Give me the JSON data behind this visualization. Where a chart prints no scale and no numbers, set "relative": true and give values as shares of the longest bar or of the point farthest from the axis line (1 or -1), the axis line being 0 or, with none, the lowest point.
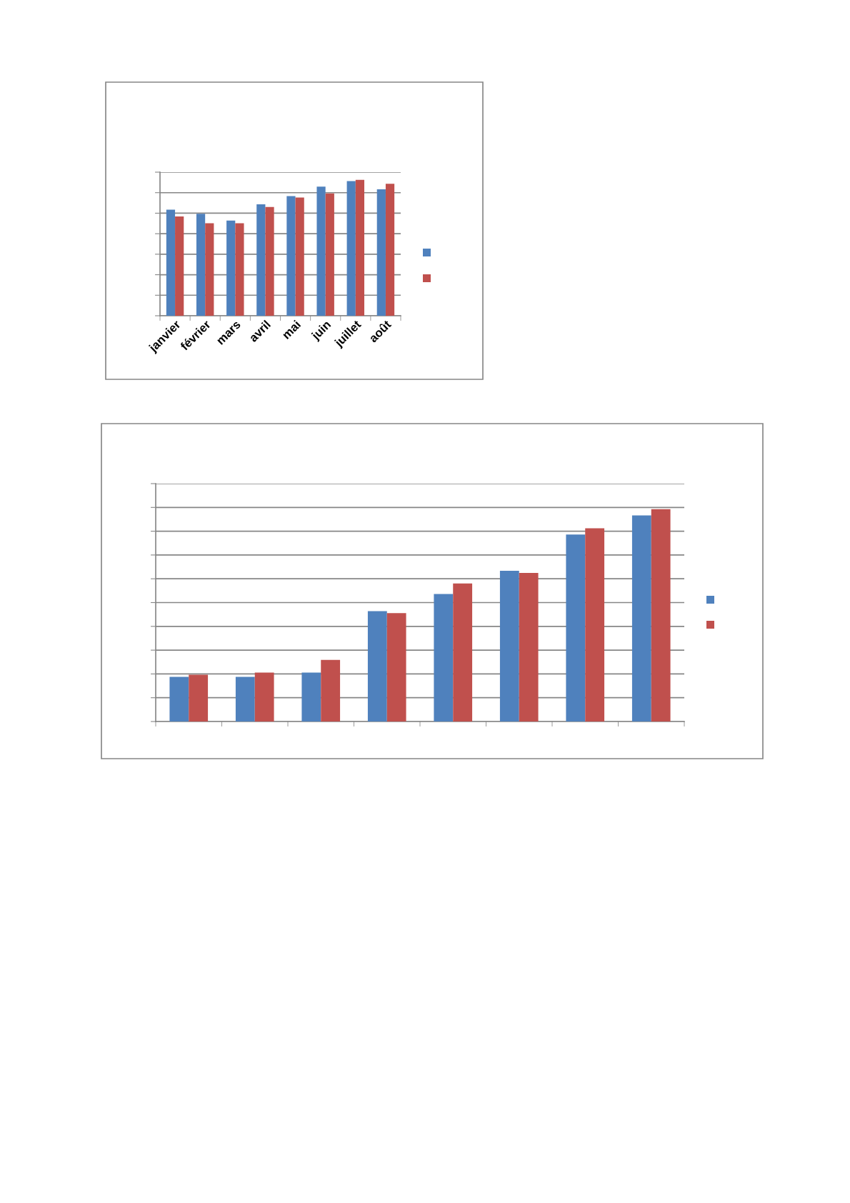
{
  "chart_data": [
    {
      "type": "bar",
      "categories": [
        "janvier",
        "février",
        "mars",
        "avril",
        "mai",
        "juin",
        "juillet",
        "août"
      ],
      "relative": true,
      "series": [
        {
          "color": "#4f81bd",
          "values": [
            0.78,
            0.75,
            0.7,
            0.82,
            0.88,
            0.95,
            0.99,
            0.93
          ]
        },
        {
          "color": "#c0504d",
          "values": [
            0.73,
            0.68,
            0.68,
            0.8,
            0.87,
            0.9,
            1,
            0.97
          ]
        }
      ],
      "grid": "y",
      "tick_labels": "x"
    },
    {
      "type": "bar",
      "categories": [
        null,
        null,
        null,
        null,
        null,
        null,
        null,
        null
      ],
      "relative": true,
      "series": [
        {
          "color": "#4f81bd",
          "values": [
            0.21,
            0.21,
            0.23,
            0.52,
            0.6,
            0.71,
            0.88,
            0.97
          ]
        },
        {
          "color": "#c0504d",
          "values": [
            0.22,
            0.23,
            0.29,
            0.51,
            0.65,
            0.7,
            0.91,
            1
          ]
        }
      ],
      "grid": "y",
      "tick_labels": false
    }
  ]
}
